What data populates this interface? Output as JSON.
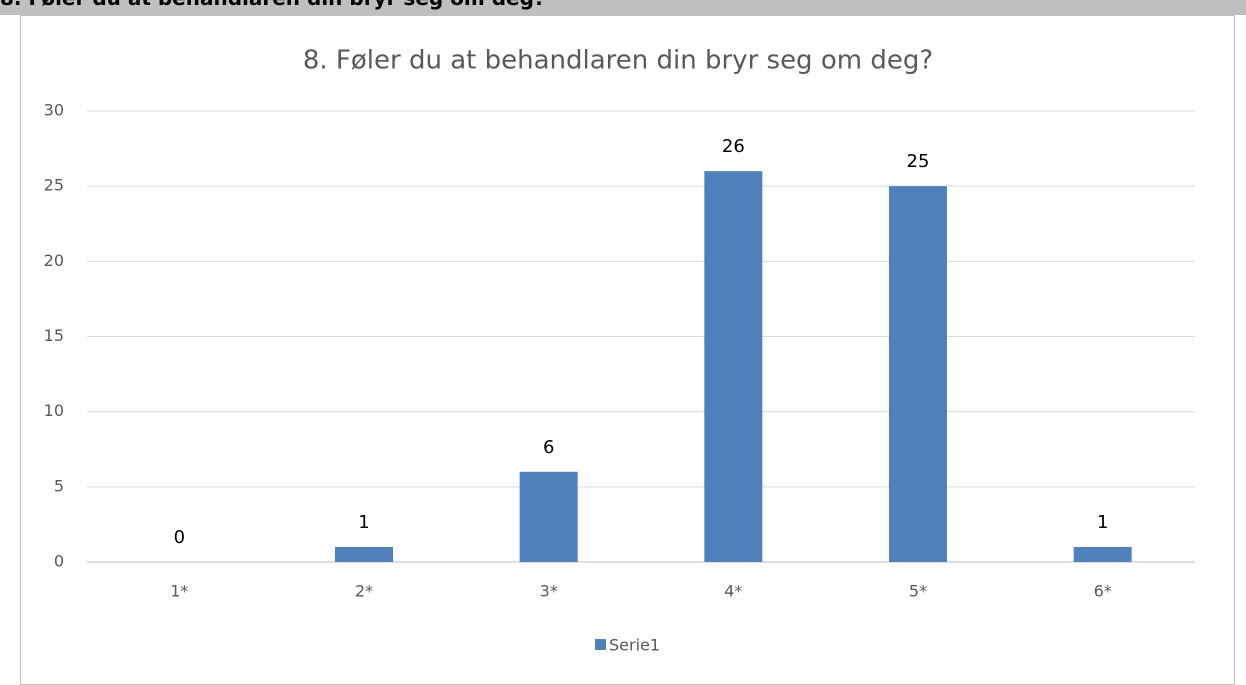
{
  "header": {
    "title": "8. Føler du at behandlaren din bryr seg om deg?"
  },
  "chart_data": {
    "type": "bar",
    "title": "8. Føler du at behandlaren din bryr seg om deg?",
    "categories": [
      "1*",
      "2*",
      "3*",
      "4*",
      "5*",
      "6*"
    ],
    "series": [
      {
        "name": "Serie1",
        "color": "#4f81bd",
        "values": [
          0,
          1,
          6,
          26,
          25,
          1
        ]
      }
    ],
    "ylim": [
      0,
      30
    ],
    "yticks": [
      0,
      5,
      10,
      15,
      20,
      25,
      30
    ],
    "grid": true,
    "legend": "bottom"
  }
}
